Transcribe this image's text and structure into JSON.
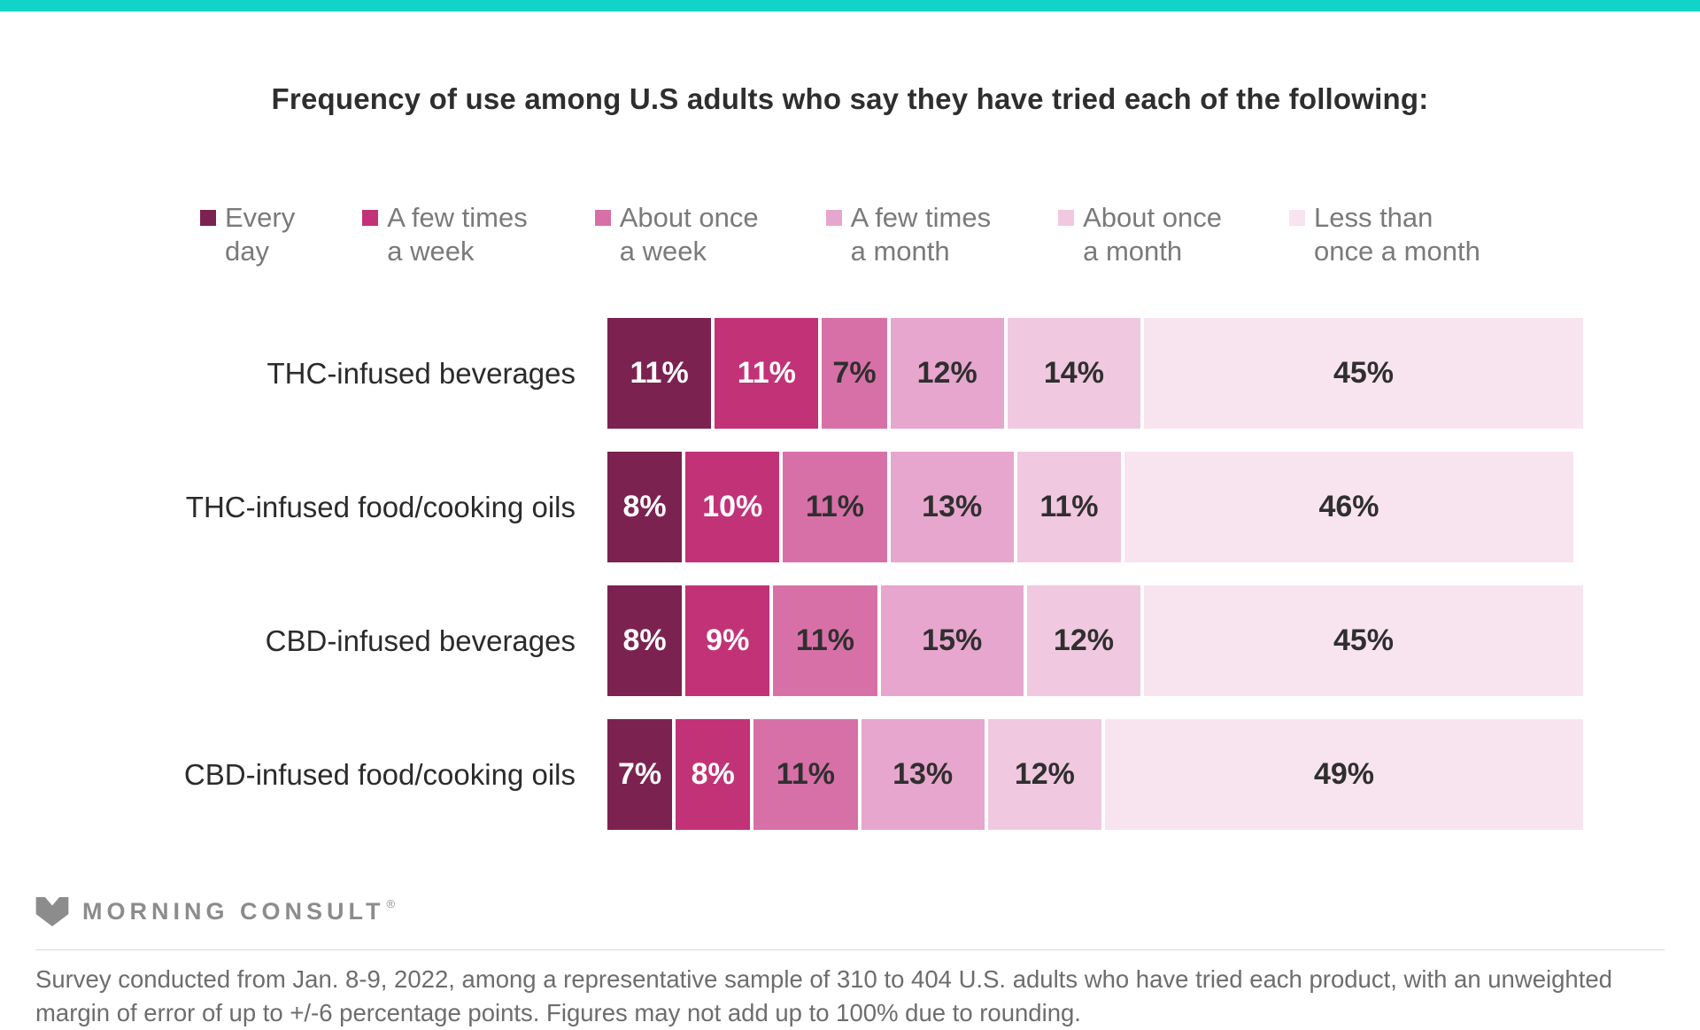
{
  "page": {
    "top_bar_color": "#11d3c7",
    "background_color": "#ffffff"
  },
  "title": "Frequency of use among U.S adults who say they have tried each of the following:",
  "legend": [
    {
      "label_line1": "Every",
      "label_line2": "day",
      "color": "#7c2251"
    },
    {
      "label_line1": "A few times",
      "label_line2": "a week",
      "color": "#c23277"
    },
    {
      "label_line1": "About once",
      "label_line2": "a week",
      "color": "#d870a8"
    },
    {
      "label_line1": "A few times",
      "label_line2": "a month",
      "color": "#e7a6cd"
    },
    {
      "label_line1": "About once",
      "label_line2": "a month",
      "color": "#f0c8e0"
    },
    {
      "label_line1": "Less than",
      "label_line2": "once a month",
      "color": "#f8e4ef"
    }
  ],
  "chart_data": {
    "type": "bar",
    "orientation": "horizontal",
    "stacked": true,
    "unit": "%",
    "xlim": [
      0,
      100
    ],
    "grid": false,
    "legend_position": "top",
    "value_label_format": "{value}%",
    "title": "Frequency of use among U.S adults who say they have tried each of the following:",
    "categories": [
      "THC-infused beverages",
      "THC-infused food/cooking oils",
      "CBD-infused beverages",
      "CBD-infused food/cooking oils"
    ],
    "series": [
      {
        "name": "Every day",
        "color": "#7c2251",
        "text_color": "#ffffff",
        "values": [
          11,
          8,
          8,
          7
        ]
      },
      {
        "name": "A few times a week",
        "color": "#c23277",
        "text_color": "#ffffff",
        "values": [
          11,
          10,
          9,
          8
        ]
      },
      {
        "name": "About once a week",
        "color": "#d870a8",
        "text_color": "#2f2f2f",
        "values": [
          7,
          11,
          11,
          11
        ]
      },
      {
        "name": "A few times a month",
        "color": "#e7a6cd",
        "text_color": "#2f2f2f",
        "values": [
          12,
          13,
          15,
          13
        ]
      },
      {
        "name": "About once a month",
        "color": "#f0c8e0",
        "text_color": "#2f2f2f",
        "values": [
          14,
          11,
          12,
          12
        ]
      },
      {
        "name": "Less than once a month",
        "color": "#f8e4ef",
        "text_color": "#2f2f2f",
        "values": [
          45,
          46,
          45,
          49
        ]
      }
    ]
  },
  "footer": {
    "brand": "MORNING CONSULT",
    "brand_registered": "®",
    "note": "Survey conducted from Jan. 8-9, 2022, among a representative sample of 310 to 404 U.S. adults who have tried each product, with an unweighted margin of error of up to +/-6 percentage points. Figures may not add up to 100% due to rounding."
  }
}
